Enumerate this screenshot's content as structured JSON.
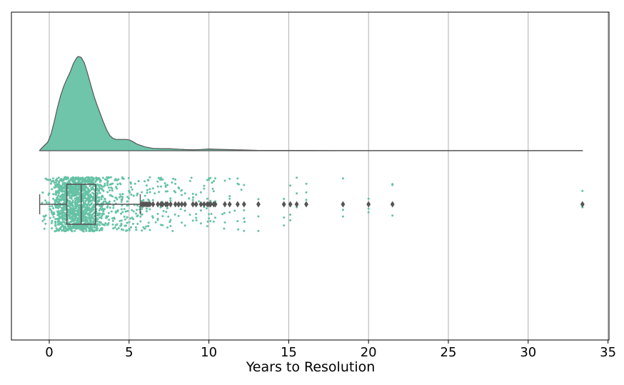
{
  "chart_data": {
    "type": "raincloud",
    "title": "",
    "xlabel": "Years to Resolution",
    "ylabel": "",
    "xlim": [
      -2.4,
      35.1
    ],
    "xticks": [
      0,
      5,
      10,
      15,
      20,
      25,
      30,
      35
    ],
    "grid": {
      "x": true,
      "y": false
    },
    "colors": {
      "fill": "#66c2a5",
      "outline": "#555555",
      "grid": "#b0b0b0",
      "frame": "#000000"
    },
    "density": {
      "x": [
        -0.6,
        -0.4,
        -0.1,
        0.1,
        0.3,
        0.5,
        0.7,
        0.9,
        1.1,
        1.3,
        1.5,
        1.7,
        1.8,
        2.0,
        2.2,
        2.4,
        2.6,
        2.8,
        3.0,
        3.2,
        3.4,
        3.6,
        3.8,
        4.0,
        4.2,
        4.4,
        4.6,
        4.8,
        5.0,
        5.2,
        5.5,
        6.0,
        6.5,
        7.0,
        7.5,
        8.0,
        8.5,
        9.0,
        9.5,
        10.0,
        10.5,
        11.0,
        12.0,
        13.0,
        14.0,
        16.0,
        18.0,
        20.0,
        22.0,
        25.0,
        28.0,
        31.0,
        33.4
      ],
      "y": [
        0.005,
        0.04,
        0.09,
        0.17,
        0.3,
        0.45,
        0.58,
        0.68,
        0.76,
        0.83,
        0.92,
        0.98,
        1.0,
        0.99,
        0.93,
        0.82,
        0.7,
        0.58,
        0.48,
        0.39,
        0.3,
        0.22,
        0.16,
        0.13,
        0.12,
        0.12,
        0.12,
        0.12,
        0.115,
        0.1,
        0.07,
        0.04,
        0.025,
        0.022,
        0.022,
        0.017,
        0.012,
        0.01,
        0.013,
        0.018,
        0.015,
        0.012,
        0.009,
        0.004,
        0.003,
        0.003,
        0.002,
        0.002,
        0.002,
        0.002,
        0.002,
        0.002,
        0.002
      ]
    },
    "boxplot": {
      "min": -0.6,
      "q1": 1.1,
      "median": 2.0,
      "q3": 2.9,
      "whisker_high": 5.7
    },
    "outliers": [
      5.8,
      5.9,
      6.0,
      6.1,
      6.2,
      6.3,
      6.5,
      6.8,
      7.0,
      7.1,
      7.3,
      7.4,
      7.6,
      7.9,
      8.1,
      8.3,
      8.5,
      9.0,
      9.2,
      9.5,
      9.7,
      9.9,
      10.0,
      10.1,
      10.3,
      10.4,
      11.0,
      11.3,
      11.8,
      12.2,
      13.1,
      14.7,
      15.1,
      15.5,
      16.1,
      18.4,
      20.0,
      21.5,
      33.4
    ],
    "strip_points": {
      "count": 1800,
      "note_hidden": ""
    }
  }
}
